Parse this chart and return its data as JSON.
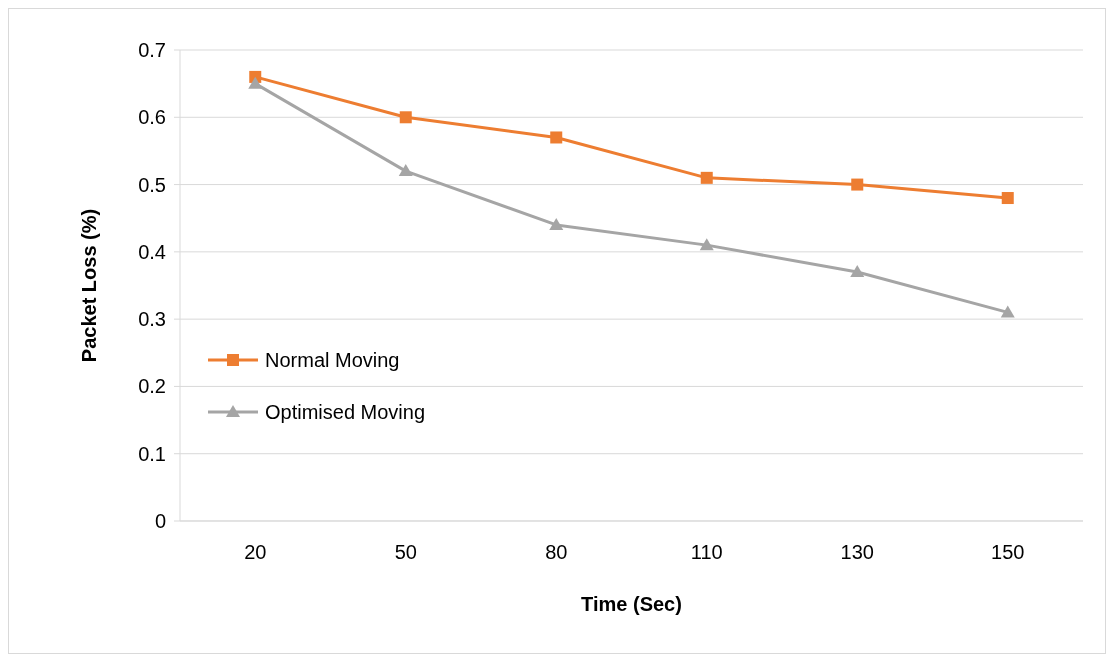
{
  "chart_data": {
    "type": "line",
    "xlabel": "Time (Sec)",
    "ylabel": "Packet Loss (%)",
    "categories": [
      "20",
      "50",
      "80",
      "110",
      "130",
      "150"
    ],
    "series": [
      {
        "name": "Normal Moving",
        "color": "#ed7d31",
        "marker": "square",
        "values": [
          0.66,
          0.6,
          0.57,
          0.51,
          0.5,
          0.48
        ]
      },
      {
        "name": "Optimised Moving",
        "color": "#a5a5a5",
        "marker": "triangle",
        "values": [
          0.65,
          0.52,
          0.44,
          0.41,
          0.37,
          0.31
        ]
      }
    ],
    "ylim": [
      0,
      0.7
    ],
    "yticks": [
      0,
      0.1,
      0.2,
      0.3,
      0.4,
      0.5,
      0.6,
      0.7
    ],
    "grid": "y",
    "legend": "left"
  }
}
